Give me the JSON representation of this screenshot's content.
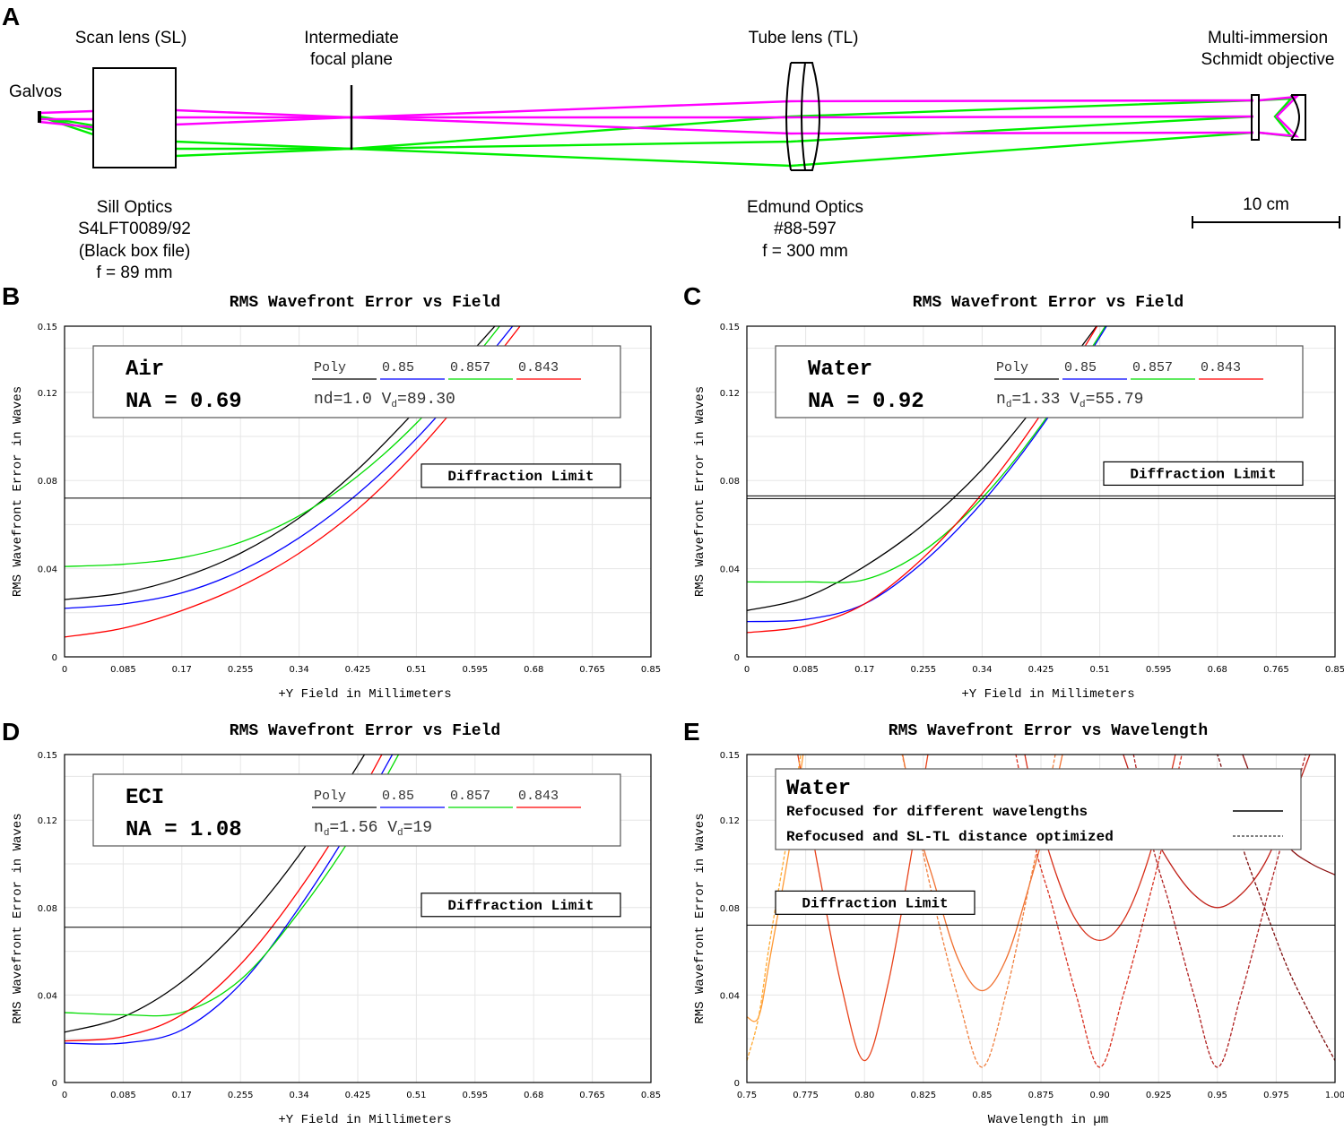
{
  "panel_A": {
    "letter": "A",
    "labels": {
      "galvos": "Galvos",
      "scan_lens": "Scan lens (SL)",
      "ifp_line1": "Intermediate",
      "ifp_line2": "focal plane",
      "tube_lens": "Tube lens (TL)",
      "obj_line1": "Multi-immersion",
      "obj_line2": "Schmidt objective",
      "sill_line1": "Sill Optics",
      "sill_line2": "S4LFT0089/92",
      "sill_line3": "(Black box file)",
      "sill_line4": "f = 89 mm",
      "edm_line1": "Edmund Optics",
      "edm_line2": "#88-597",
      "edm_line3": "f = 300 mm",
      "scale": "10 cm"
    },
    "colors": {
      "beam1": "#ff00ff",
      "beam2": "#00ee00"
    }
  },
  "diffraction_label": "Diffraction Limit",
  "chart_data": [
    {
      "id": "B",
      "letter": "B",
      "type": "line",
      "title": "RMS Wavefront Error vs Field",
      "xlabel": "+Y Field in Millimeters",
      "ylabel": "RMS Wavefront Error in Waves",
      "xlim": [
        0,
        0.85
      ],
      "ylim": [
        0,
        0.15
      ],
      "xticks": [
        "0",
        "0.085",
        "0.17",
        "0.255",
        "0.34",
        "0.425",
        "0.51",
        "0.595",
        "0.68",
        "0.765",
        "0.85"
      ],
      "yticks": [
        "0",
        "0.04",
        "0.08",
        "0.12",
        "0.15"
      ],
      "diffraction_limit": 0.072,
      "medium": "Air",
      "na": "NA = 0.69",
      "legend": [
        "Poly",
        "0.85",
        "0.857",
        "0.843"
      ],
      "params": {
        "n": "nd=1.0",
        "v_main": " V",
        "v_sub": "d",
        "v_val": "=89.30"
      },
      "series": [
        {
          "name": "Poly",
          "color": "#000000",
          "x": [
            0,
            0.085,
            0.17,
            0.255,
            0.34,
            0.425,
            0.51,
            0.595,
            0.68
          ],
          "y": [
            0.026,
            0.029,
            0.036,
            0.047,
            0.063,
            0.085,
            0.112,
            0.14,
            0.17
          ]
        },
        {
          "name": "0.85",
          "color": "#0000ff",
          "x": [
            0,
            0.085,
            0.17,
            0.255,
            0.34,
            0.425,
            0.51,
            0.595,
            0.68
          ],
          "y": [
            0.022,
            0.024,
            0.029,
            0.039,
            0.054,
            0.074,
            0.099,
            0.129,
            0.162
          ]
        },
        {
          "name": "0.857",
          "color": "#00dd00",
          "x": [
            0,
            0.085,
            0.17,
            0.255,
            0.34,
            0.425,
            0.51,
            0.595,
            0.68
          ],
          "y": [
            0.041,
            0.042,
            0.045,
            0.052,
            0.064,
            0.082,
            0.106,
            0.136,
            0.17
          ]
        },
        {
          "name": "0.843",
          "color": "#ff0000",
          "x": [
            0,
            0.085,
            0.17,
            0.255,
            0.34,
            0.425,
            0.51,
            0.595,
            0.68
          ],
          "y": [
            0.009,
            0.013,
            0.021,
            0.032,
            0.047,
            0.067,
            0.093,
            0.124,
            0.158
          ]
        }
      ]
    },
    {
      "id": "C",
      "letter": "C",
      "type": "line",
      "title": "RMS Wavefront Error vs Field",
      "xlabel": "+Y Field in Millimeters",
      "ylabel": "RMS Wavefront Error in Waves",
      "xlim": [
        0,
        0.85
      ],
      "ylim": [
        0,
        0.15
      ],
      "xticks": [
        "0",
        "0.085",
        "0.17",
        "0.255",
        "0.34",
        "0.425",
        "0.51",
        "0.595",
        "0.68",
        "0.765",
        "0.85"
      ],
      "yticks": [
        "0",
        "0.04",
        "0.08",
        "0.12",
        "0.15"
      ],
      "diffraction_limit": 0.073,
      "medium": "Water",
      "na": "NA = 0.92",
      "legend": [
        "Poly",
        "0.85",
        "0.857",
        "0.843"
      ],
      "params": {
        "n_main": "n",
        "n_sub": "d",
        "n_val": "=1.33",
        "v_main": " V",
        "v_sub": "d",
        "v_val": "=55.79"
      },
      "series": [
        {
          "name": "Poly",
          "color": "#000000",
          "x": [
            0,
            0.085,
            0.17,
            0.255,
            0.34,
            0.425,
            0.51,
            0.595
          ],
          "y": [
            0.021,
            0.027,
            0.041,
            0.06,
            0.085,
            0.117,
            0.152,
            0.19
          ]
        },
        {
          "name": "0.85",
          "color": "#0000ff",
          "x": [
            0,
            0.085,
            0.17,
            0.255,
            0.34,
            0.425,
            0.51,
            0.595
          ],
          "y": [
            0.016,
            0.017,
            0.024,
            0.043,
            0.07,
            0.104,
            0.145,
            0.19
          ]
        },
        {
          "name": "0.857",
          "color": "#00dd00",
          "x": [
            0,
            0.085,
            0.17,
            0.255,
            0.34,
            0.425,
            0.51,
            0.595
          ],
          "y": [
            0.034,
            0.034,
            0.035,
            0.048,
            0.072,
            0.105,
            0.146,
            0.19
          ]
        },
        {
          "name": "0.843",
          "color": "#ff0000",
          "x": [
            0,
            0.085,
            0.17,
            0.255,
            0.34,
            0.425,
            0.51,
            0.595
          ],
          "y": [
            0.011,
            0.014,
            0.024,
            0.045,
            0.074,
            0.11,
            0.152,
            0.2
          ]
        }
      ]
    },
    {
      "id": "D",
      "letter": "D",
      "type": "line",
      "title": "RMS Wavefront Error vs Field",
      "xlabel": "+Y Field in Millimeters",
      "ylabel": "RMS Wavefront Error in Waves",
      "xlim": [
        0,
        0.85
      ],
      "ylim": [
        0,
        0.15
      ],
      "xticks": [
        "0",
        "0.085",
        "0.17",
        "0.255",
        "0.34",
        "0.425",
        "0.51",
        "0.595",
        "0.68",
        "0.765",
        "0.85"
      ],
      "yticks": [
        "0",
        "0.04",
        "0.08",
        "0.12",
        "0.15"
      ],
      "diffraction_limit": 0.071,
      "medium": "ECI",
      "na": "NA = 1.08",
      "legend": [
        "Poly",
        "0.85",
        "0.857",
        "0.843"
      ],
      "params": {
        "n_main": "n",
        "n_sub": "d",
        "n_val": "=1.56",
        "v_main": " V",
        "v_sub": "d",
        "v_val": "=19"
      },
      "series": [
        {
          "name": "Poly",
          "color": "#000000",
          "x": [
            0,
            0.085,
            0.17,
            0.255,
            0.34,
            0.425,
            0.51
          ],
          "y": [
            0.023,
            0.03,
            0.046,
            0.071,
            0.104,
            0.145,
            0.19
          ]
        },
        {
          "name": "0.85",
          "color": "#0000ff",
          "x": [
            0,
            0.085,
            0.17,
            0.255,
            0.34,
            0.425,
            0.51
          ],
          "y": [
            0.018,
            0.018,
            0.024,
            0.045,
            0.08,
            0.122,
            0.17
          ]
        },
        {
          "name": "0.857",
          "color": "#00dd00",
          "x": [
            0,
            0.085,
            0.17,
            0.255,
            0.34,
            0.425,
            0.51
          ],
          "y": [
            0.032,
            0.031,
            0.032,
            0.047,
            0.078,
            0.117,
            0.165
          ]
        },
        {
          "name": "0.843",
          "color": "#ff0000",
          "x": [
            0,
            0.085,
            0.17,
            0.255,
            0.34,
            0.425,
            0.51
          ],
          "y": [
            0.019,
            0.021,
            0.031,
            0.054,
            0.088,
            0.13,
            0.18
          ]
        }
      ]
    },
    {
      "id": "E",
      "letter": "E",
      "type": "line",
      "title": "RMS Wavefront Error vs Wavelength",
      "xlabel": "Wavelength in µm",
      "ylabel": "RMS Wavefront Error in Waves",
      "xlim": [
        0.75,
        1.0
      ],
      "ylim": [
        0,
        0.15
      ],
      "xticks": [
        "0.75",
        "0.775",
        "0.80",
        "0.825",
        "0.85",
        "0.875",
        "0.90",
        "0.925",
        "0.95",
        "0.975",
        "1.00"
      ],
      "yticks": [
        "0",
        "0.04",
        "0.08",
        "0.12",
        "0.15"
      ],
      "diffraction_limit": 0.072,
      "medium": "Water",
      "legend_solid": "Refocused for different wavelengths",
      "legend_dashed": "Refocused and SL-TL distance optimized",
      "series": [
        {
          "name": "Refocused for different wavelengths",
          "style": "solid",
          "color": "#ff9933",
          "x": [
            0.75,
            0.755,
            0.76,
            0.77,
            0.78
          ],
          "y": [
            0.03,
            0.03,
            0.058,
            0.12,
            0.2
          ]
        },
        {
          "name": "Refocused for different wavelengths",
          "style": "solid",
          "color": "#e8421a",
          "x": [
            0.77,
            0.78,
            0.79,
            0.8,
            0.81,
            0.82,
            0.83
          ],
          "y": [
            0.16,
            0.1,
            0.045,
            0.01,
            0.045,
            0.105,
            0.17
          ]
        },
        {
          "name": "Refocused for different wavelengths",
          "style": "solid",
          "color": "#f07030",
          "x": [
            0.8,
            0.82,
            0.83,
            0.84,
            0.85,
            0.86,
            0.87,
            0.88,
            0.89
          ],
          "y": [
            0.24,
            0.13,
            0.09,
            0.056,
            0.042,
            0.056,
            0.09,
            0.13,
            0.18
          ]
        },
        {
          "name": "Refocused for different wavelengths",
          "style": "solid",
          "color": "#d8301a",
          "x": [
            0.86,
            0.87,
            0.88,
            0.89,
            0.9,
            0.91,
            0.92,
            0.93,
            0.94
          ],
          "y": [
            0.2,
            0.14,
            0.1,
            0.074,
            0.065,
            0.074,
            0.1,
            0.14,
            0.19
          ]
        },
        {
          "name": "Refocused for different wavelengths",
          "style": "solid",
          "color": "#c02018",
          "x": [
            0.91,
            0.92,
            0.93,
            0.94,
            0.95,
            0.96,
            0.97,
            0.98,
            0.99,
            1.0
          ],
          "y": [
            0.15,
            0.12,
            0.1,
            0.086,
            0.08,
            0.086,
            0.1,
            0.124,
            0.152,
            0.18
          ]
        },
        {
          "name": "Refocused for different wavelengths",
          "style": "solid",
          "color": "#8b1010",
          "x": [
            0.96,
            0.97,
            0.98,
            0.99,
            1.0
          ],
          "y": [
            0.152,
            0.125,
            0.108,
            0.1,
            0.095
          ]
        },
        {
          "name": "Refocused and SL-TL distance optimized",
          "style": "dashed",
          "color": "#ffaa33",
          "x": [
            0.75,
            0.755,
            0.76,
            0.77,
            0.78
          ],
          "y": [
            0.01,
            0.03,
            0.066,
            0.13,
            0.2
          ]
        },
        {
          "name": "Refocused and SL-TL distance optimized",
          "style": "dashed",
          "color": "#f08040",
          "x": [
            0.8,
            0.82,
            0.83,
            0.84,
            0.85,
            0.86,
            0.87,
            0.875,
            0.89
          ],
          "y": [
            0.23,
            0.13,
            0.08,
            0.038,
            0.007,
            0.04,
            0.09,
            0.116,
            0.2
          ]
        },
        {
          "name": "Refocused and SL-TL distance optimized",
          "style": "dashed",
          "color": "#d83020",
          "x": [
            0.85,
            0.87,
            0.88,
            0.89,
            0.9,
            0.91,
            0.92,
            0.93,
            0.95
          ],
          "y": [
            0.23,
            0.12,
            0.08,
            0.04,
            0.007,
            0.04,
            0.08,
            0.125,
            0.23
          ]
        },
        {
          "name": "Refocused and SL-TL distance optimized",
          "style": "dashed",
          "color": "#b02020",
          "x": [
            0.9,
            0.92,
            0.93,
            0.94,
            0.95,
            0.96,
            0.97,
            0.98,
            1.0
          ],
          "y": [
            0.23,
            0.12,
            0.08,
            0.04,
            0.007,
            0.04,
            0.08,
            0.12,
            0.2
          ]
        },
        {
          "name": "Refocused and SL-TL distance optimized",
          "style": "dashed",
          "color": "#801010",
          "x": [
            0.94,
            0.95,
            0.96,
            0.97,
            0.98,
            0.99,
            1.0
          ],
          "y": [
            0.17,
            0.15,
            0.11,
            0.08,
            0.052,
            0.03,
            0.01
          ]
        }
      ]
    }
  ]
}
